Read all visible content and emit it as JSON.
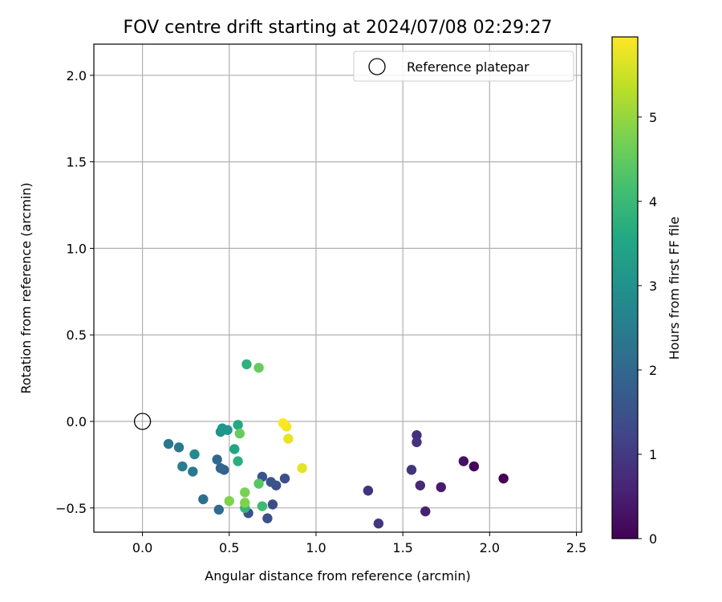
{
  "chart_data": {
    "type": "scatter",
    "title": "FOV centre drift starting at 2024/07/08 02:29:27",
    "xlabel": "Angular distance from reference (arcmin)",
    "ylabel": "Rotation from reference (arcmin)",
    "xlim": [
      -0.28,
      2.53
    ],
    "ylim": [
      -0.64,
      2.18
    ],
    "xticks": [
      0.0,
      0.5,
      1.0,
      1.5,
      2.0,
      2.5
    ],
    "yticks": [
      -0.5,
      0.0,
      0.5,
      1.0,
      1.5,
      2.0
    ],
    "grid": true,
    "legend": {
      "placement": "top-right",
      "entries": [
        "Reference platepar"
      ]
    },
    "reference_point": {
      "x": 0.0,
      "y": 0.0
    },
    "colorbar": {
      "label": "Hours from first FF file",
      "colormap": "viridis",
      "range": [
        0,
        5.95
      ],
      "ticks": [
        0,
        1,
        2,
        3,
        4,
        5
      ]
    },
    "points": [
      {
        "x": 2.08,
        "y": -0.33,
        "c": 0.0
      },
      {
        "x": 1.91,
        "y": -0.26,
        "c": 0.1
      },
      {
        "x": 1.85,
        "y": -0.23,
        "c": 0.25
      },
      {
        "x": 1.72,
        "y": -0.38,
        "c": 0.45
      },
      {
        "x": 1.63,
        "y": -0.52,
        "c": 0.55
      },
      {
        "x": 1.6,
        "y": -0.37,
        "c": 0.7
      },
      {
        "x": 1.58,
        "y": -0.08,
        "c": 0.8
      },
      {
        "x": 1.58,
        "y": -0.12,
        "c": 0.85
      },
      {
        "x": 1.55,
        "y": -0.28,
        "c": 0.9
      },
      {
        "x": 1.36,
        "y": -0.59,
        "c": 0.95
      },
      {
        "x": 1.3,
        "y": -0.4,
        "c": 0.85
      },
      {
        "x": 0.82,
        "y": -0.33,
        "c": 1.45
      },
      {
        "x": 0.77,
        "y": -0.37,
        "c": 1.45
      },
      {
        "x": 0.74,
        "y": -0.35,
        "c": 1.55
      },
      {
        "x": 0.75,
        "y": -0.48,
        "c": 1.35
      },
      {
        "x": 0.72,
        "y": -0.56,
        "c": 1.45
      },
      {
        "x": 0.69,
        "y": -0.32,
        "c": 1.55
      },
      {
        "x": 0.61,
        "y": -0.53,
        "c": 1.45
      },
      {
        "x": 0.47,
        "y": -0.28,
        "c": 1.85
      },
      {
        "x": 0.45,
        "y": -0.27,
        "c": 1.95
      },
      {
        "x": 0.43,
        "y": -0.22,
        "c": 2.0
      },
      {
        "x": 0.44,
        "y": -0.51,
        "c": 2.1
      },
      {
        "x": 0.35,
        "y": -0.45,
        "c": 2.2
      },
      {
        "x": 0.29,
        "y": -0.29,
        "c": 2.4
      },
      {
        "x": 0.23,
        "y": -0.26,
        "c": 2.5
      },
      {
        "x": 0.21,
        "y": -0.15,
        "c": 2.35
      },
      {
        "x": 0.15,
        "y": -0.13,
        "c": 2.3
      },
      {
        "x": 0.3,
        "y": -0.19,
        "c": 2.8
      },
      {
        "x": 0.45,
        "y": -0.06,
        "c": 3.0
      },
      {
        "x": 0.46,
        "y": -0.04,
        "c": 3.15
      },
      {
        "x": 0.49,
        "y": -0.05,
        "c": 3.1
      },
      {
        "x": 0.53,
        "y": -0.16,
        "c": 3.5
      },
      {
        "x": 0.55,
        "y": -0.02,
        "c": 3.6
      },
      {
        "x": 0.55,
        "y": -0.23,
        "c": 3.75
      },
      {
        "x": 0.59,
        "y": -0.5,
        "c": 3.9
      },
      {
        "x": 0.6,
        "y": 0.33,
        "c": 3.8
      },
      {
        "x": 0.69,
        "y": -0.49,
        "c": 4.05
      },
      {
        "x": 0.67,
        "y": -0.36,
        "c": 4.4
      },
      {
        "x": 0.56,
        "y": -0.07,
        "c": 4.55
      },
      {
        "x": 0.67,
        "y": 0.31,
        "c": 4.55
      },
      {
        "x": 0.59,
        "y": -0.41,
        "c": 4.75
      },
      {
        "x": 0.59,
        "y": -0.47,
        "c": 4.8
      },
      {
        "x": 0.5,
        "y": -0.46,
        "c": 4.8
      },
      {
        "x": 0.92,
        "y": -0.27,
        "c": 5.7
      },
      {
        "x": 0.84,
        "y": -0.1,
        "c": 5.75
      },
      {
        "x": 0.83,
        "y": -0.03,
        "c": 5.85
      },
      {
        "x": 0.81,
        "y": -0.01,
        "c": 5.95
      }
    ]
  }
}
